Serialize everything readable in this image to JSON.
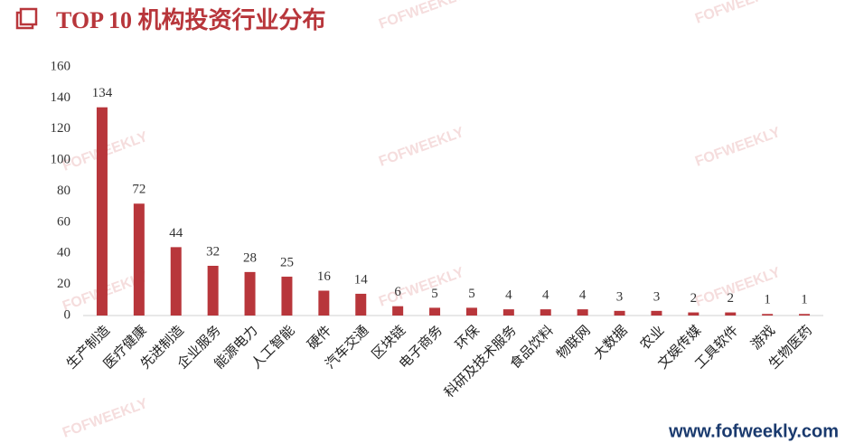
{
  "chart_data": {
    "type": "bar",
    "title": "TOP 10 机构投资行业分布",
    "categories": [
      "生产制造",
      "医疗健康",
      "先进制造",
      "企业服务",
      "能源电力",
      "人工智能",
      "硬件",
      "汽车交通",
      "区块链",
      "电子商务",
      "环保",
      "科研及技术服务",
      "食品饮料",
      "物联网",
      "大数据",
      "农业",
      "文娱传媒",
      "工具软件",
      "游戏",
      "生物医药"
    ],
    "values": [
      134,
      72,
      44,
      32,
      28,
      25,
      16,
      14,
      6,
      5,
      5,
      4,
      4,
      4,
      3,
      3,
      2,
      2,
      1,
      1
    ],
    "color": "#b8363b",
    "ylim": [
      0,
      160
    ],
    "yticks": [
      0,
      20,
      40,
      60,
      80,
      100,
      120,
      140,
      160
    ],
    "grid": false,
    "watermark": "FOFWEEKLY",
    "source": "www.fofweekly.com"
  }
}
